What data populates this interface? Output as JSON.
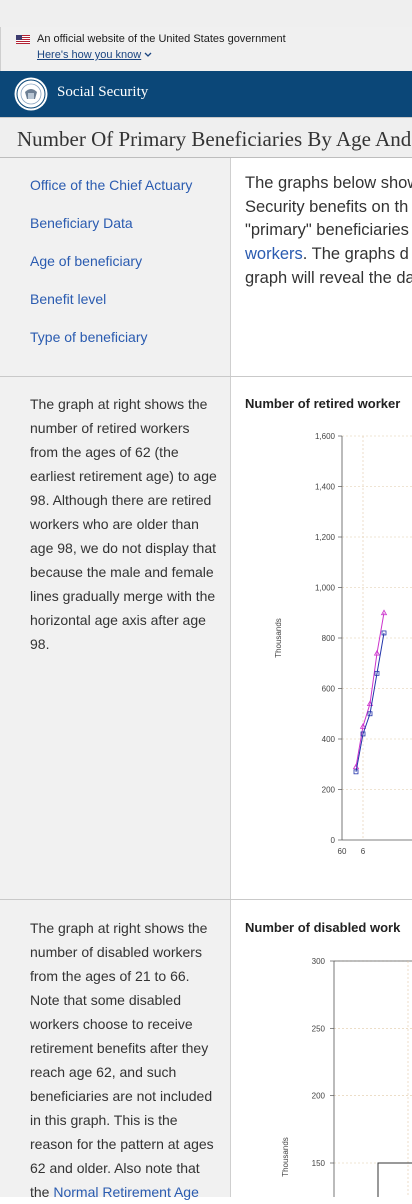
{
  "banner": {
    "official_text": "An official website of the United States government",
    "how_you_know": "Here's how you know"
  },
  "header": {
    "agency_name": "Social Security",
    "brand_color": "#0b4778"
  },
  "page": {
    "title": "Number Of Primary Beneficiaries By Age And"
  },
  "sidebar_nav": [
    "Office of the Chief Actuary",
    "Beneficiary Data",
    "Age of beneficiary",
    "Benefit level",
    "Type of beneficiary"
  ],
  "intro": {
    "line1": "The graphs below show",
    "line2": "Security benefits on th",
    "line3": "\"primary\" beneficiaries",
    "line4_link": "workers",
    "line4_rest": ". The graphs d",
    "line5": "graph will reveal the da"
  },
  "sections": [
    {
      "description": "The graph at right shows the number of retired workers from the ages of 62 (the earliest retirement age) to age 98. Although there are retired workers who are older than age 98, we do not display that because the male and female lines gradually merge with the horizontal age axis after age 98.",
      "chart_title": "Number of retired worker"
    },
    {
      "description_before_link": "The graph at right shows the number of disabled workers from the ages of 21 to 66.  Note that some disabled workers choose to receive retirement benefits after they reach age 62, and such beneficiaries are not included in this graph. This is the reason for the pattern at ages 62 and older. Also note that the ",
      "description_link": "Normal Retirement Age",
      "chart_title": "Number of disabled work"
    }
  ],
  "chart_data": [
    {
      "type": "line",
      "title": "Number of retired worker",
      "ylabel": "Thousands",
      "xlabel": "",
      "yticks": [
        "1,600",
        "1,400",
        "1,200",
        "1,000",
        "800",
        "600",
        "400",
        "200",
        "0"
      ],
      "xticks": [
        "60",
        "6"
      ],
      "ylim": [
        0,
        1600
      ],
      "xlim": [
        60,
        70
      ],
      "grid": true,
      "series": [
        {
          "color": "#cc33cc",
          "marker": "triangle",
          "x": [
            62,
            63,
            64,
            65,
            66
          ],
          "y": [
            290,
            450,
            540,
            740,
            900
          ]
        },
        {
          "color": "#2233aa",
          "marker": "square",
          "x": [
            62,
            63,
            64,
            65,
            66
          ],
          "y": [
            270,
            420,
            500,
            660,
            820
          ]
        }
      ]
    },
    {
      "type": "line",
      "title": "Number of disabled work",
      "ylabel": "Thousands",
      "xlabel": "",
      "yticks": [
        "300",
        "250",
        "200",
        "150"
      ],
      "ylim": [
        140,
        300
      ],
      "grid": true,
      "series": [
        {
          "color": "#333333",
          "x": [
            25,
            40
          ],
          "y": [
            150,
            150
          ]
        }
      ]
    }
  ]
}
